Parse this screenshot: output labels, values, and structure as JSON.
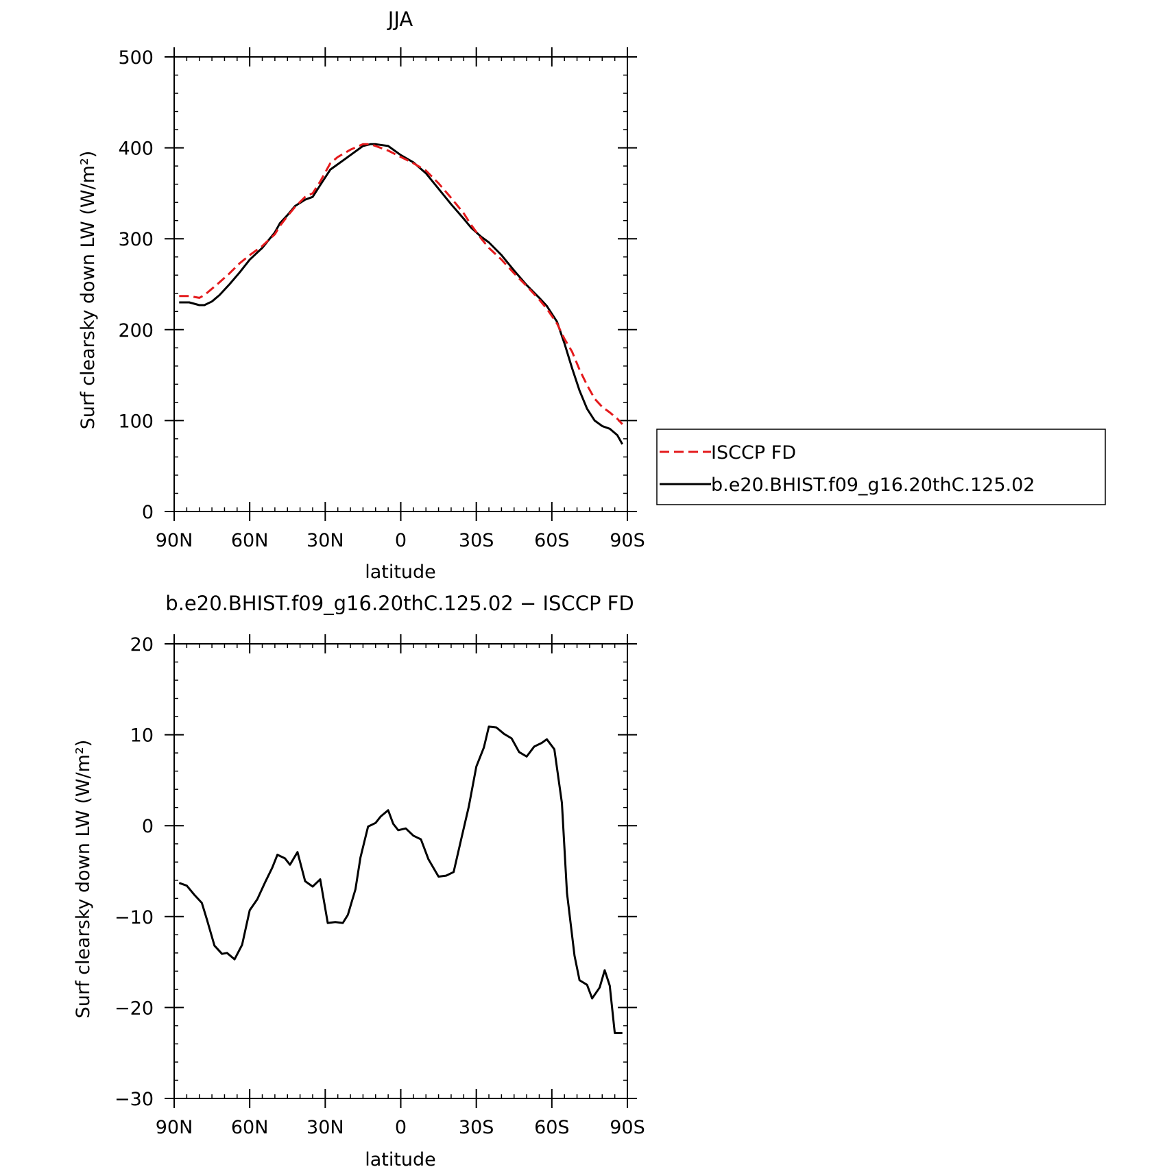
{
  "colors": {
    "model": "#000000",
    "obs": "#e41a1c"
  },
  "chart_data": [
    {
      "type": "line",
      "title": "JJA",
      "xlabel": "latitude",
      "ylabel": "Surf clearsky down LW (W/m²)",
      "xlim": [
        -90,
        90
      ],
      "ylim": [
        0,
        500
      ],
      "xticks": [
        {
          "value": -90,
          "label": "90N"
        },
        {
          "value": -60,
          "label": "60N"
        },
        {
          "value": -30,
          "label": "30N"
        },
        {
          "value": 0,
          "label": "0"
        },
        {
          "value": 30,
          "label": "30S"
        },
        {
          "value": 60,
          "label": "60S"
        },
        {
          "value": 90,
          "label": "90S"
        }
      ],
      "yticks": [
        {
          "value": 0,
          "label": "0"
        },
        {
          "value": 100,
          "label": "100"
        },
        {
          "value": 200,
          "label": "200"
        },
        {
          "value": 300,
          "label": "300"
        },
        {
          "value": 400,
          "label": "400"
        },
        {
          "value": 500,
          "label": "500"
        }
      ],
      "legend": {
        "placement": "right",
        "grid": false
      },
      "series": [
        {
          "name": "ISCCP FD",
          "style": "dashed",
          "color": "#e41a1c",
          "x": [
            -88,
            -84,
            -80,
            -78,
            -75,
            -72,
            -68,
            -64,
            -60,
            -55,
            -50,
            -48,
            -45,
            -42,
            -38,
            -35,
            -32,
            -28,
            -25,
            -20,
            -15,
            -12,
            -10,
            -5,
            0,
            5,
            10,
            15,
            20,
            25,
            28,
            32,
            35,
            40,
            45,
            50,
            55,
            58,
            62,
            65,
            68,
            71,
            74,
            77,
            80,
            83,
            86,
            88
          ],
          "values": [
            237,
            237,
            235,
            238,
            245,
            252,
            262,
            273,
            282,
            292,
            305,
            314,
            325,
            335,
            346,
            350,
            363,
            383,
            390,
            398,
            404,
            404,
            402,
            397,
            390,
            383,
            375,
            361,
            345,
            328,
            315,
            300,
            290,
            277,
            262,
            248,
            233,
            223,
            207,
            190,
            176,
            156,
            139,
            124,
            115,
            109,
            102,
            96
          ]
        },
        {
          "name": "b.e20.BHIST.f09_g16.20thC.125.02",
          "style": "solid",
          "color": "#000000",
          "x": [
            -88,
            -84,
            -80,
            -78,
            -75,
            -72,
            -68,
            -64,
            -60,
            -55,
            -50,
            -48,
            -45,
            -42,
            -38,
            -35,
            -32,
            -28,
            -25,
            -20,
            -15,
            -12,
            -10,
            -5,
            0,
            5,
            10,
            15,
            20,
            25,
            28,
            32,
            35,
            40,
            45,
            50,
            55,
            58,
            62,
            65,
            68,
            71,
            74,
            77,
            80,
            83,
            86,
            88
          ],
          "values": [
            230,
            230,
            227,
            227,
            231,
            238,
            250,
            263,
            277,
            290,
            307,
            317,
            326,
            336,
            343,
            346,
            359,
            376,
            382,
            392,
            402,
            404,
            404,
            402,
            392,
            384,
            372,
            355,
            338,
            322,
            312,
            302,
            296,
            282,
            265,
            249,
            235,
            226,
            209,
            185,
            158,
            133,
            113,
            100,
            94,
            91,
            84,
            74
          ]
        }
      ]
    },
    {
      "type": "line",
      "title": "b.e20.BHIST.f09_g16.20thC.125.02 − ISCCP FD",
      "xlabel": "latitude",
      "ylabel": "Surf clearsky down LW (W/m²)",
      "xlim": [
        -90,
        90
      ],
      "ylim": [
        -30,
        20
      ],
      "xticks": [
        {
          "value": -90,
          "label": "90N"
        },
        {
          "value": -60,
          "label": "60N"
        },
        {
          "value": -30,
          "label": "30N"
        },
        {
          "value": 0,
          "label": "0"
        },
        {
          "value": 30,
          "label": "30S"
        },
        {
          "value": 60,
          "label": "60S"
        },
        {
          "value": 90,
          "label": "90S"
        }
      ],
      "yticks": [
        {
          "value": -30,
          "label": "−30"
        },
        {
          "value": -20,
          "label": "−20"
        },
        {
          "value": -10,
          "label": "−10"
        },
        {
          "value": 0,
          "label": "0"
        },
        {
          "value": 10,
          "label": "10"
        },
        {
          "value": 20,
          "label": "20"
        }
      ],
      "series": [
        {
          "style": "solid",
          "color": "#000000",
          "x": [
            -88,
            -85,
            -82,
            -79,
            -77,
            -74,
            -71,
            -69,
            -66,
            -63,
            -60,
            -57,
            -54,
            -51,
            -49,
            -46,
            -44,
            -41,
            -38,
            -35,
            -32,
            -29,
            -26,
            -23,
            -21,
            -18,
            -16,
            -13,
            -10,
            -8,
            -5,
            -3,
            -1,
            2,
            5,
            8,
            11,
            15,
            18,
            21,
            24,
            27,
            30,
            33,
            35,
            38,
            41,
            44,
            47,
            50,
            53,
            56,
            58,
            61,
            64,
            66,
            69,
            71,
            74,
            76,
            79,
            81,
            83,
            85,
            88
          ],
          "values": [
            -6.3,
            -6.6,
            -7.6,
            -8.5,
            -10.3,
            -13.2,
            -14.1,
            -14.0,
            -14.7,
            -13.1,
            -9.3,
            -8.1,
            -6.3,
            -4.6,
            -3.2,
            -3.6,
            -4.3,
            -2.9,
            -6.1,
            -6.7,
            -5.9,
            -10.7,
            -10.6,
            -10.7,
            -9.8,
            -7.0,
            -3.5,
            -0.1,
            0.3,
            1.0,
            1.7,
            0.2,
            -0.5,
            -0.3,
            -1.1,
            -1.5,
            -3.7,
            -5.6,
            -5.5,
            -5.1,
            -1.5,
            2.1,
            6.5,
            8.6,
            10.9,
            10.8,
            10.1,
            9.6,
            8.1,
            7.6,
            8.7,
            9.1,
            9.5,
            8.4,
            2.5,
            -7.4,
            -14.3,
            -17.0,
            -17.5,
            -19.0,
            -17.8,
            -15.9,
            -17.6,
            -22.8,
            -22.8
          ]
        }
      ]
    }
  ]
}
